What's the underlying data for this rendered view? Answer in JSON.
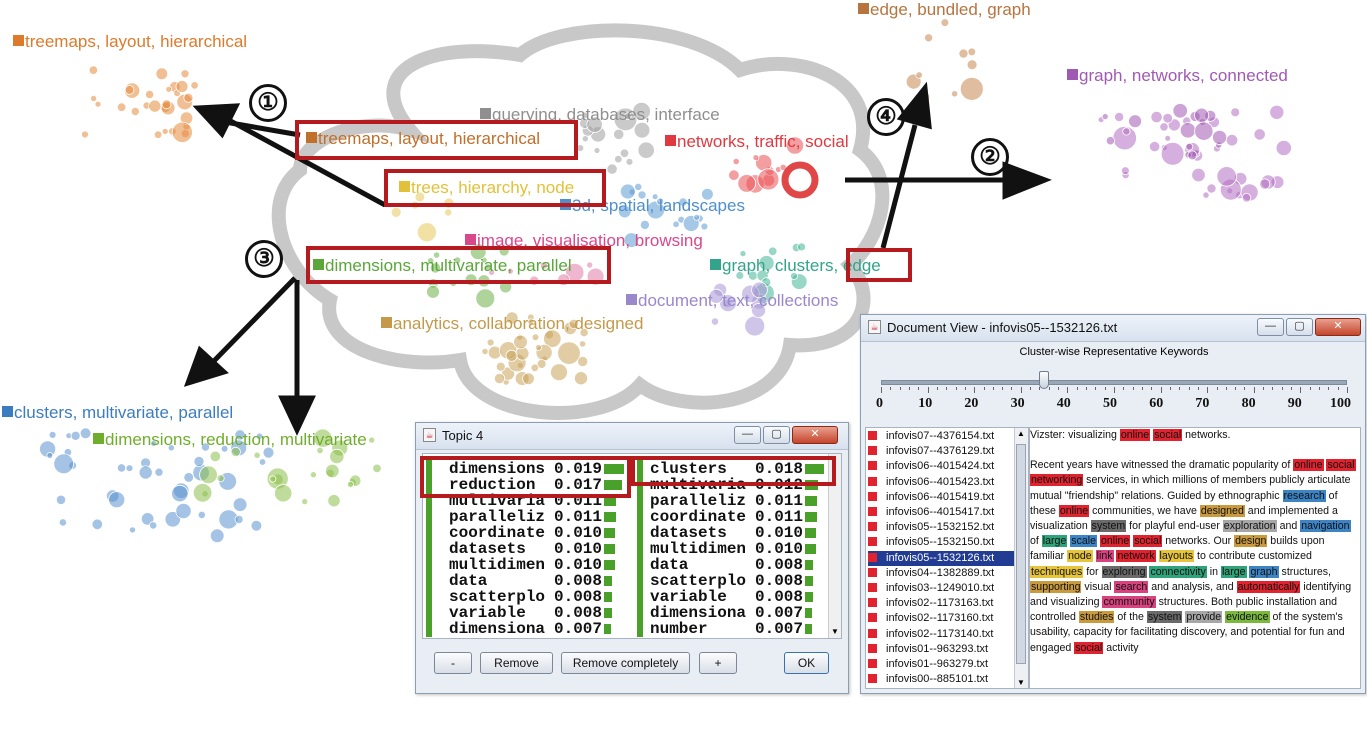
{
  "outer_topics": [
    {
      "id": "treemaps",
      "label": "treemaps, layout, hierarchical",
      "color": "#dd7a2c"
    },
    {
      "id": "edge",
      "label": "edge, bundled, graph",
      "color": "#b7743f"
    },
    {
      "id": "graph",
      "label": "graph, networks, connected",
      "color": "#a05ab3"
    },
    {
      "id": "clusters",
      "label": "clusters, multivariate, parallel",
      "color": "#3c7cc0"
    },
    {
      "id": "dimensions",
      "label": "dimensions, reduction, multivariate",
      "color": "#6fae2c"
    }
  ],
  "center_topics": [
    {
      "id": "querying",
      "label": "querying, databases, interface",
      "color": "#8f8f8f"
    },
    {
      "id": "networks",
      "label": "networks, traffic, social",
      "color": "#e0393f"
    },
    {
      "id": "treemaps_c",
      "label": "treemaps, layout, hierarchical",
      "color": "#c0702a"
    },
    {
      "id": "trees",
      "label": "trees, hierarchy, node",
      "color": "#e2c13a"
    },
    {
      "id": "spatial",
      "label": "3d, spatial, landscapes",
      "color": "#4f8fcc"
    },
    {
      "id": "image",
      "label": "image, visualisation, browsing",
      "color": "#d8488b"
    },
    {
      "id": "dims_c",
      "label": "dimensions, multivariate, parallel",
      "color": "#5aa63a"
    },
    {
      "id": "graph_c",
      "label": "graph, clusters, edge",
      "color": "#33a48b"
    },
    {
      "id": "document",
      "label": "document, text, collections",
      "color": "#9a88cc"
    },
    {
      "id": "analytics",
      "label": "analytics, collaboration, designed",
      "color": "#c49a4a"
    }
  ],
  "steps": [
    "①",
    "②",
    "③",
    "④"
  ],
  "topic_window": {
    "title": "Topic 4",
    "left_col": [
      {
        "word": "dimensions",
        "value": "0.019",
        "bar": 0.019
      },
      {
        "word": "reduction",
        "value": "0.017",
        "bar": 0.017
      },
      {
        "word": "multivaria",
        "value": "0.011",
        "bar": 0.011
      },
      {
        "word": "paralleliz",
        "value": "0.011",
        "bar": 0.011
      },
      {
        "word": "coordinate",
        "value": "0.010",
        "bar": 0.01
      },
      {
        "word": "datasets",
        "value": "0.010",
        "bar": 0.01
      },
      {
        "word": "multidimen",
        "value": "0.010",
        "bar": 0.01
      },
      {
        "word": "data",
        "value": "0.008",
        "bar": 0.008
      },
      {
        "word": "scatterplo",
        "value": "0.008",
        "bar": 0.008
      },
      {
        "word": "variable",
        "value": "0.008",
        "bar": 0.008
      },
      {
        "word": "dimensiona",
        "value": "0.007",
        "bar": 0.007
      }
    ],
    "right_col": [
      {
        "word": "clusters",
        "value": "0.018",
        "bar": 0.018
      },
      {
        "word": "multivaria",
        "value": "0.012",
        "bar": 0.012
      },
      {
        "word": "paralleliz",
        "value": "0.011",
        "bar": 0.011
      },
      {
        "word": "coordinate",
        "value": "0.011",
        "bar": 0.011
      },
      {
        "word": "datasets",
        "value": "0.010",
        "bar": 0.01
      },
      {
        "word": "multidimen",
        "value": "0.010",
        "bar": 0.01
      },
      {
        "word": "data",
        "value": "0.008",
        "bar": 0.008
      },
      {
        "word": "scatterplo",
        "value": "0.008",
        "bar": 0.008
      },
      {
        "word": "variable",
        "value": "0.008",
        "bar": 0.008
      },
      {
        "word": "dimensiona",
        "value": "0.007",
        "bar": 0.007
      },
      {
        "word": "number",
        "value": "0.007",
        "bar": 0.007
      }
    ],
    "buttons": {
      "minus": "-",
      "remove": "Remove",
      "remove_completely": "Remove completely",
      "plus": "+",
      "ok": "OK"
    }
  },
  "doc_window": {
    "title": "Document View - infovis05--1532126.txt",
    "slider_label": "Cluster-wise Representative Keywords",
    "slider_value": 35,
    "scale": [
      "0",
      "10",
      "20",
      "30",
      "40",
      "50",
      "60",
      "70",
      "80",
      "90",
      "100"
    ],
    "files": [
      "infovis07--4376154.txt",
      "infovis07--4376129.txt",
      "infovis06--4015424.txt",
      "infovis06--4015423.txt",
      "infovis06--4015419.txt",
      "infovis06--4015417.txt",
      "infovis05--1532152.txt",
      "infovis05--1532150.txt",
      "infovis05--1532126.txt",
      "infovis04--1382889.txt",
      "infovis03--1249010.txt",
      "infovis02--1173163.txt",
      "infovis02--1173160.txt",
      "infovis02--1173140.txt",
      "infovis01--963293.txt",
      "infovis01--963279.txt",
      "infovis00--885101.txt"
    ],
    "selected_file": "infovis05--1532126.txt",
    "text_title": [
      [
        "Vizster: visualizing ",
        ""
      ],
      [
        "online",
        "red"
      ],
      [
        " ",
        ""
      ],
      [
        "social",
        "red"
      ],
      [
        " networks.",
        ""
      ]
    ],
    "text_body": [
      [
        "Recent years have witnessed the dramatic popularity of ",
        ""
      ],
      [
        "online",
        "red"
      ],
      [
        " ",
        ""
      ],
      [
        "social",
        "red"
      ],
      [
        " ",
        ""
      ],
      [
        "networking",
        "red"
      ],
      [
        " services, in which millions of members publicly articulate mutual \"friendship\" relations. Guided by ethnographic ",
        ""
      ],
      [
        "research",
        "blue"
      ],
      [
        " of these ",
        ""
      ],
      [
        "online",
        "red"
      ],
      [
        " communities, we have ",
        ""
      ],
      [
        "designed",
        "tan"
      ],
      [
        " and implemented a visualization ",
        ""
      ],
      [
        "system",
        "dk"
      ],
      [
        " for playful end-user ",
        ""
      ],
      [
        "exploration",
        "gray"
      ],
      [
        " and ",
        ""
      ],
      [
        "navigation",
        "blue"
      ],
      [
        " of ",
        ""
      ],
      [
        "large",
        "grn"
      ],
      [
        " ",
        ""
      ],
      [
        "scale",
        "blue"
      ],
      [
        " ",
        ""
      ],
      [
        "online",
        "red"
      ],
      [
        " ",
        ""
      ],
      [
        "social",
        "red"
      ],
      [
        " networks. Our ",
        ""
      ],
      [
        "design",
        "tan"
      ],
      [
        " builds upon familiar ",
        ""
      ],
      [
        "node",
        "yel"
      ],
      [
        " ",
        ""
      ],
      [
        "link",
        "pink"
      ],
      [
        " ",
        ""
      ],
      [
        "network",
        "red"
      ],
      [
        " ",
        ""
      ],
      [
        "layouts",
        "yel"
      ],
      [
        " to contribute customized ",
        ""
      ],
      [
        "techniques",
        "yel"
      ],
      [
        " for ",
        ""
      ],
      [
        "exploring",
        "dk"
      ],
      [
        " ",
        ""
      ],
      [
        "connectivity",
        "grn"
      ],
      [
        " in ",
        ""
      ],
      [
        "large",
        "grn"
      ],
      [
        " ",
        ""
      ],
      [
        "graph",
        "blue"
      ],
      [
        " structures, ",
        ""
      ],
      [
        "supporting",
        "tan"
      ],
      [
        " visual ",
        ""
      ],
      [
        "search",
        "pink"
      ],
      [
        " and analysis, and ",
        ""
      ],
      [
        "automatically",
        "red"
      ],
      [
        " identifying and visualizing ",
        ""
      ],
      [
        "community",
        "pink"
      ],
      [
        " structures. Both public installation and controlled ",
        ""
      ],
      [
        "studies",
        "tan"
      ],
      [
        " of the ",
        ""
      ],
      [
        "system",
        "dk"
      ],
      [
        " ",
        ""
      ],
      [
        "provide",
        "gray"
      ],
      [
        " ",
        ""
      ],
      [
        "evidence",
        "lgrn"
      ],
      [
        " of the system's usability, capacity for facilitating discovery, and potential for fun and engaged ",
        ""
      ],
      [
        "social",
        "red"
      ],
      [
        " activity",
        ""
      ]
    ]
  }
}
